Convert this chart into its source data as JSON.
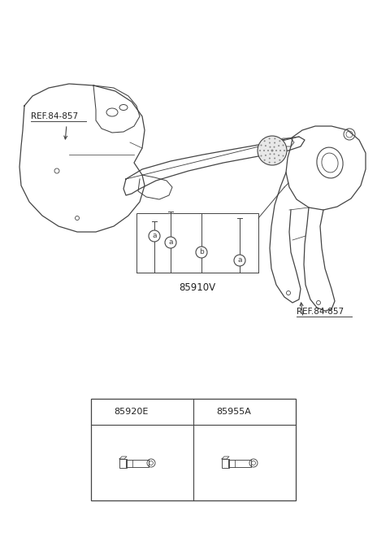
{
  "bg_color": "#ffffff",
  "line_color": "#444444",
  "label_color": "#222222",
  "part_85910V": "85910V",
  "part_85920E": "85920E",
  "part_85955A": "85955A",
  "ref_label": "REF.84-857",
  "circle_a": "a",
  "circle_b": "b",
  "figsize": [
    4.8,
    6.55
  ],
  "dpi": 100,
  "xlim": [
    0,
    480
  ],
  "ylim": [
    0,
    655
  ]
}
